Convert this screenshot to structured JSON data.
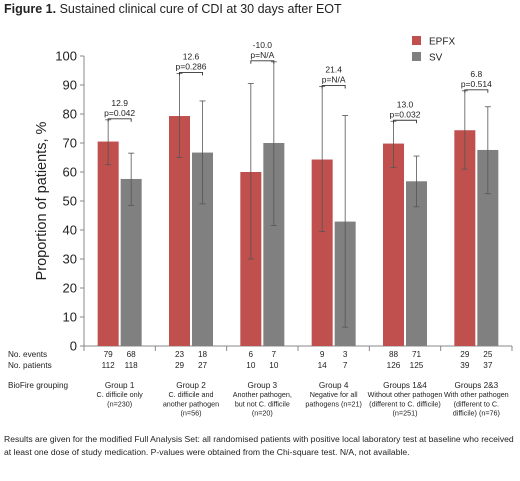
{
  "figure_title_prefix": "Figure 1.",
  "figure_title_text": "Sustained clinical cure of CDI at 30 days after EOT",
  "footnote": "Results are given for the modified Full Analysis Set: all randomised patients with positive local laboratory test at baseline who received at least one dose of study medication. P-values were obtained from the Chi-square test. N/A, not available.",
  "colors": {
    "EPFX": "#c0504d",
    "SV": "#808080",
    "axis": "#888888",
    "text": "#222222"
  },
  "chart_data": {
    "type": "bar",
    "ylabel": "Proportion of patients, %",
    "ylim": [
      0,
      100
    ],
    "yticks": [
      0,
      10,
      20,
      30,
      40,
      50,
      60,
      70,
      80,
      90,
      100
    ],
    "grid": false,
    "legend_position": "top-right",
    "categories": [
      "Group 1",
      "Group 2",
      "Group 3",
      "Group 4",
      "Groups 1&4",
      "Groups 2&3"
    ],
    "series": [
      {
        "name": "EPFX",
        "values": [
          70.5,
          79.3,
          60.0,
          64.3,
          69.8,
          74.4
        ],
        "ci_low": [
          62.5,
          65.0,
          30.0,
          39.5,
          61.5,
          61.0
        ],
        "ci_high": [
          78.0,
          94.0,
          90.5,
          89.5,
          77.5,
          88.0
        ]
      },
      {
        "name": "SV",
        "values": [
          57.6,
          66.7,
          70.0,
          42.9,
          56.8,
          67.6
        ],
        "ci_low": [
          48.5,
          49.0,
          41.5,
          6.5,
          48.0,
          52.5
        ],
        "ci_high": [
          66.5,
          84.5,
          98.0,
          79.5,
          65.5,
          82.5
        ]
      }
    ],
    "annotations": [
      {
        "diff": "12.9",
        "p": "p=0.042"
      },
      {
        "diff": "12.6",
        "p": "p=0.286"
      },
      {
        "diff": "-10.0",
        "p": "p=N/A"
      },
      {
        "diff": "21.4",
        "p": "p=N/A"
      },
      {
        "diff": "13.0",
        "p": "p=0.032"
      },
      {
        "diff": "6.8",
        "p": "p=0.514"
      }
    ],
    "table_rows": [
      {
        "label": "No. events",
        "values": [
          [
            "79",
            "68"
          ],
          [
            "23",
            "18"
          ],
          [
            "6",
            "7"
          ],
          [
            "9",
            "3"
          ],
          [
            "88",
            "71"
          ],
          [
            "29",
            "25"
          ]
        ]
      },
      {
        "label": "No. patients",
        "values": [
          [
            "112",
            "118"
          ],
          [
            "29",
            "27"
          ],
          [
            "10",
            "10"
          ],
          [
            "14",
            "7"
          ],
          [
            "126",
            "125"
          ],
          [
            "39",
            "37"
          ]
        ]
      }
    ],
    "grouping_label": "BioFire grouping",
    "grouping_descriptions": [
      [
        "Group 1",
        "C. difficile only",
        "(n=230)"
      ],
      [
        "Group 2",
        "C. difficile and",
        "another pathogen",
        "(n=56)"
      ],
      [
        "Group 3",
        "Another pathogen,",
        "but not C. difficile",
        "(n=20)"
      ],
      [
        "Group 4",
        "Negative for all",
        "pathogens (n=21)"
      ],
      [
        "Groups 1&4",
        "Without other pathogen",
        "(different to C. difficile)",
        "(n=251)"
      ],
      [
        "Groups 2&3",
        "With other pathogen",
        "(different to C.",
        "difficile) (n=76)"
      ]
    ]
  }
}
